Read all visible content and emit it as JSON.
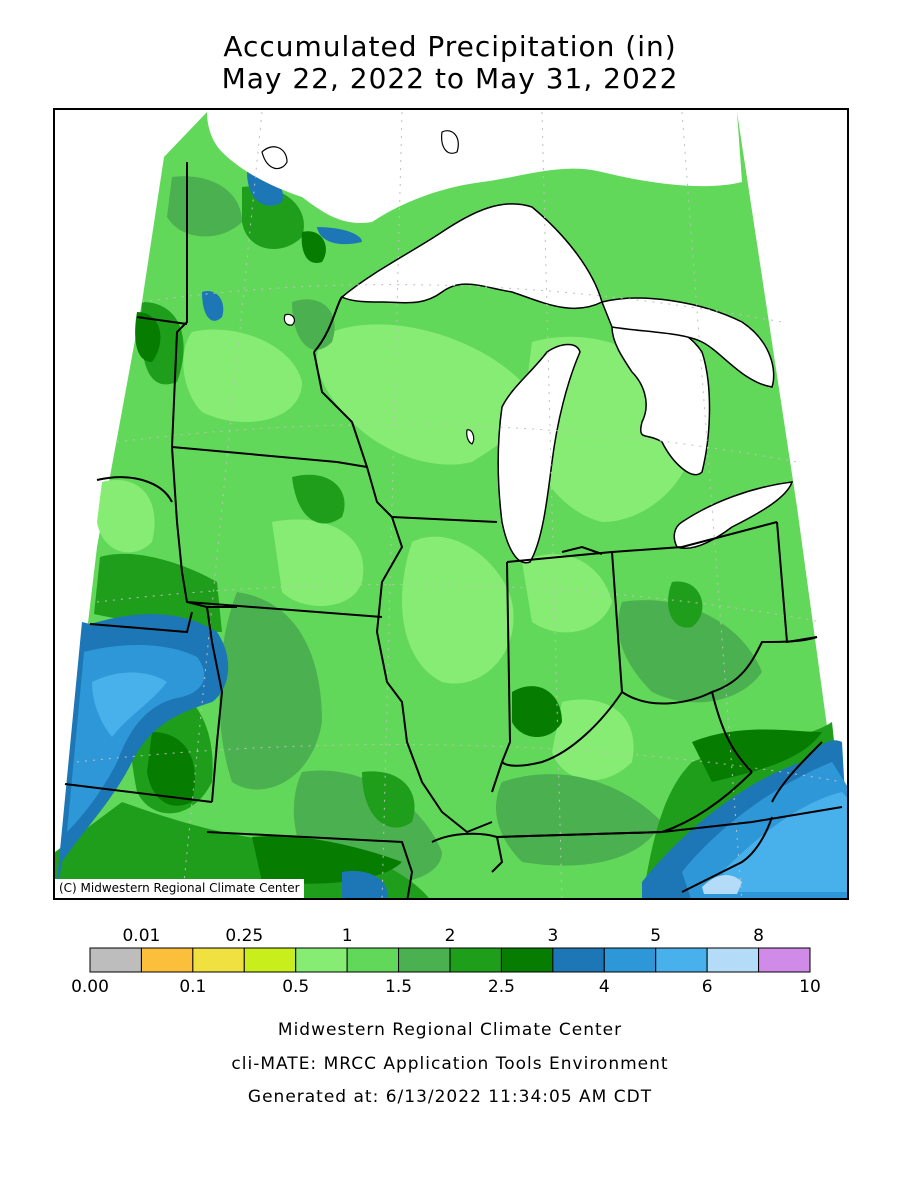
{
  "title": {
    "line1": "Accumulated Precipitation (in)",
    "line2": "May 22, 2022 to May 31, 2022"
  },
  "map": {
    "credit": "(C) Midwestern Regional Climate Center",
    "region": "Upper Midwest / Great Lakes",
    "lakes": [
      "Lake Superior",
      "Lake Michigan",
      "Lake Huron",
      "Lake Erie"
    ]
  },
  "legend": {
    "upper_labels": [
      "0.01",
      "0.25",
      "1",
      "2",
      "3",
      "5",
      "8"
    ],
    "lower_labels": [
      "0.00",
      "0.1",
      "0.5",
      "1.5",
      "2.5",
      "4",
      "6",
      "10"
    ],
    "bins": [
      {
        "from": "0.00",
        "to": "0.01",
        "color": "#bdbdbd"
      },
      {
        "from": "0.01",
        "to": "0.1",
        "color": "#fbbf3c"
      },
      {
        "from": "0.1",
        "to": "0.25",
        "color": "#f0e040"
      },
      {
        "from": "0.25",
        "to": "0.5",
        "color": "#c8ef1c"
      },
      {
        "from": "0.5",
        "to": "1",
        "color": "#86ec74"
      },
      {
        "from": "1",
        "to": "1.5",
        "color": "#62d85a"
      },
      {
        "from": "1.5",
        "to": "2",
        "color": "#4bb04f"
      },
      {
        "from": "2",
        "to": "2.5",
        "color": "#1f9e1c"
      },
      {
        "from": "2.5",
        "to": "3",
        "color": "#067d00"
      },
      {
        "from": "3",
        "to": "4",
        "color": "#1d77b6"
      },
      {
        "from": "4",
        "to": "5",
        "color": "#2e97d8"
      },
      {
        "from": "5",
        "to": "6",
        "color": "#48b1ec"
      },
      {
        "from": "6",
        "to": "8",
        "color": "#b4dcf8"
      },
      {
        "from": "8",
        "to": "10",
        "color": "#d08ae8"
      }
    ]
  },
  "footer": {
    "line1": "Midwestern Regional Climate Center",
    "line2": "cli-MATE: MRCC Application Tools Environment",
    "line3": "Generated at: 6/13/2022 11:34:05 AM CDT"
  }
}
